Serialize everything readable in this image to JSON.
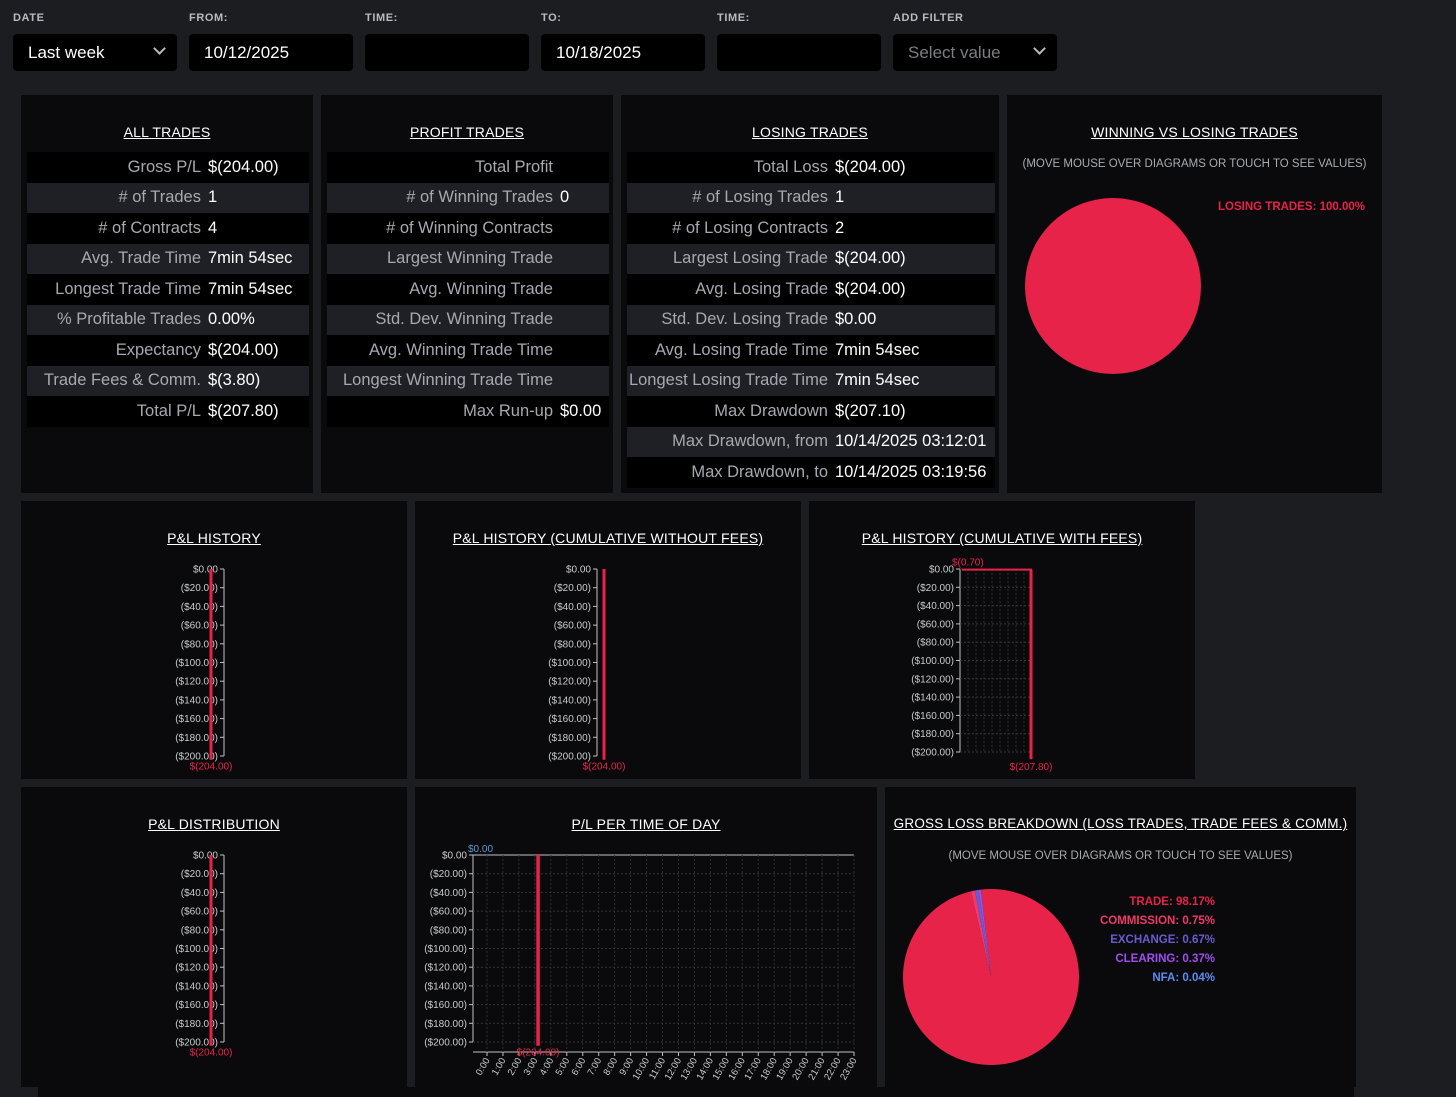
{
  "filters": {
    "date": {
      "label": "DATE",
      "value": "Last week"
    },
    "from": {
      "label": "FROM:",
      "value": "10/12/2025"
    },
    "from_time": {
      "label": "TIME:",
      "value": ""
    },
    "to": {
      "label": "TO:",
      "value": "10/18/2025"
    },
    "to_time": {
      "label": "TIME:",
      "value": ""
    },
    "add_filter": {
      "label": "ADD FILTER",
      "placeholder": "Select value"
    }
  },
  "all_trades": {
    "title": "ALL TRADES",
    "rows": [
      {
        "k": "Gross P/L",
        "v": "$(204.00)"
      },
      {
        "k": "# of Trades",
        "v": "1"
      },
      {
        "k": "# of Contracts",
        "v": "4"
      },
      {
        "k": "Avg. Trade Time",
        "v": "7min 54sec"
      },
      {
        "k": "Longest Trade Time",
        "v": "7min 54sec"
      },
      {
        "k": "% Profitable Trades",
        "v": "0.00%"
      },
      {
        "k": "Expectancy",
        "v": "$(204.00)"
      },
      {
        "k": "Trade Fees & Comm.",
        "v": "$(3.80)"
      },
      {
        "k": "Total P/L",
        "v": "$(207.80)"
      }
    ]
  },
  "profit_trades": {
    "title": "PROFIT TRADES",
    "rows": [
      {
        "k": "Total Profit",
        "v": ""
      },
      {
        "k": "# of Winning Trades",
        "v": "0"
      },
      {
        "k": "# of Winning Contracts",
        "v": ""
      },
      {
        "k": "Largest Winning Trade",
        "v": ""
      },
      {
        "k": "Avg. Winning Trade",
        "v": ""
      },
      {
        "k": "Std. Dev. Winning Trade",
        "v": ""
      },
      {
        "k": "Avg. Winning Trade Time",
        "v": ""
      },
      {
        "k": "Longest Winning Trade Time",
        "v": ""
      },
      {
        "k": "Max Run-up",
        "v": "$0.00"
      }
    ]
  },
  "losing_trades": {
    "title": "LOSING TRADES",
    "rows": [
      {
        "k": "Total Loss",
        "v": "$(204.00)"
      },
      {
        "k": "# of Losing Trades",
        "v": "1"
      },
      {
        "k": "# of Losing Contracts",
        "v": "2"
      },
      {
        "k": "Largest Losing Trade",
        "v": "$(204.00)"
      },
      {
        "k": "Avg. Losing Trade",
        "v": "$(204.00)"
      },
      {
        "k": "Std. Dev. Losing Trade",
        "v": "$0.00"
      },
      {
        "k": "Avg. Losing Trade Time",
        "v": "7min 54sec"
      },
      {
        "k": "Longest Losing Trade Time",
        "v": "7min 54sec"
      },
      {
        "k": "Max Drawdown",
        "v": "$(207.10)"
      },
      {
        "k": "Max Drawdown, from",
        "v": "10/14/2025 03:12:01"
      },
      {
        "k": "Max Drawdown, to",
        "v": "10/14/2025 03:19:56"
      }
    ]
  },
  "win_loss": {
    "title": "WINNING VS LOSING TRADES",
    "hint": "(MOVE MOUSE OVER DIAGRAMS OR TOUCH TO SEE VALUES)",
    "legend": [
      {
        "label": "LOSING TRADES: 100.00%",
        "color": "#e8234a"
      }
    ]
  },
  "gross_loss": {
    "title": "GROSS LOSS BREAKDOWN (LOSS TRADES, TRADE FEES & COMM.)",
    "hint": "(MOVE MOUSE OVER DIAGRAMS OR TOUCH TO SEE VALUES)",
    "legend": [
      {
        "label": "TRADE: 98.17%",
        "color": "#e8234a"
      },
      {
        "label": "COMMISSION: 0.75%",
        "color": "#f0386b"
      },
      {
        "label": "EXCHANGE: 0.67%",
        "color": "#6a5bd0"
      },
      {
        "label": "CLEARING: 0.37%",
        "color": "#a04cf0"
      },
      {
        "label": "NFA: 0.04%",
        "color": "#5b8cf0"
      }
    ]
  },
  "chart_titles": {
    "pl_history": "P&L HISTORY",
    "pl_cum_no_fees": "P&L HISTORY (CUMULATIVE WITHOUT FEES)",
    "pl_cum_fees": "P&L HISTORY (CUMULATIVE WITH FEES)",
    "pl_distribution": "P&L DISTRIBUTION",
    "pl_time_of_day": "P/L PER TIME OF DAY"
  },
  "chart_data": [
    {
      "type": "bar",
      "title": "P&L HISTORY",
      "y_ticks": [
        "$0.00",
        "($20.00)",
        "($40.00)",
        "($60.00)",
        "($80.00)",
        "($100.00)",
        "($120.00)",
        "($140.00)",
        "($160.00)",
        "($180.00)",
        "($200.00)"
      ],
      "ylim": [
        -204,
        0
      ],
      "values": [
        -204
      ],
      "value_labels": [
        "$(204.00)"
      ],
      "color": "#e8234a"
    },
    {
      "type": "bar",
      "title": "P&L HISTORY (CUMULATIVE WITHOUT FEES)",
      "y_ticks": [
        "$0.00",
        "($20.00)",
        "($40.00)",
        "($60.00)",
        "($80.00)",
        "($100.00)",
        "($120.00)",
        "($140.00)",
        "($160.00)",
        "($180.00)",
        "($200.00)"
      ],
      "ylim": [
        -204,
        0
      ],
      "values": [
        -204
      ],
      "value_labels": [
        "$(204.00)"
      ],
      "color": "#e8234a"
    },
    {
      "type": "line",
      "title": "P&L HISTORY (CUMULATIVE WITH FEES)",
      "y_ticks": [
        "$0.00",
        "($20.00)",
        "($40.00)",
        "($60.00)",
        "($80.00)",
        "($100.00)",
        "($120.00)",
        "($140.00)",
        "($160.00)",
        "($180.00)",
        "($200.00)"
      ],
      "ylim": [
        -207.8,
        0
      ],
      "values": [
        -0.7,
        -207.8
      ],
      "value_labels": [
        "$(0.70)",
        "$(207.80)"
      ],
      "grid": true,
      "color": "#e8234a"
    },
    {
      "type": "bar",
      "title": "P&L DISTRIBUTION",
      "y_ticks": [
        "$0.00",
        "($20.00)",
        "($40.00)",
        "($60.00)",
        "($80.00)",
        "($100.00)",
        "($120.00)",
        "($140.00)",
        "($160.00)",
        "($180.00)",
        "($200.00)"
      ],
      "ylim": [
        -204,
        0
      ],
      "values": [
        -204
      ],
      "value_labels": [
        "$(204.00)"
      ],
      "color": "#e8234a"
    },
    {
      "type": "bar",
      "title": "P/L PER TIME OF DAY",
      "y_ticks": [
        "$0.00",
        "($20.00)",
        "($40.00)",
        "($60.00)",
        "($80.00)",
        "($100.00)",
        "($120.00)",
        "($140.00)",
        "($160.00)",
        "($180.00)",
        "($200.00)"
      ],
      "x_ticks": [
        "0:00",
        "1:00",
        "2:00",
        "3:00",
        "4:00",
        "5:00",
        "6:00",
        "7:00",
        "8:00",
        "9:00",
        "10:00",
        "11:00",
        "12:00",
        "13:00",
        "14:00",
        "15:00",
        "16:00",
        "17:00",
        "18:00",
        "19:00",
        "20:00",
        "21:00",
        "22:00",
        "23:00"
      ],
      "ylim": [
        -204,
        0
      ],
      "bars": [
        {
          "hour": "3:00",
          "value": -204,
          "label": "$(204.00)"
        }
      ],
      "top_label": "$0.00",
      "grid": true,
      "color": "#e8234a"
    },
    {
      "type": "pie",
      "title": "WINNING VS LOSING TRADES",
      "slices": [
        {
          "name": "LOSING TRADES",
          "value": 100.0
        }
      ]
    },
    {
      "type": "pie",
      "title": "GROSS LOSS BREAKDOWN (LOSS TRADES, TRADE FEES & COMM.)",
      "slices": [
        {
          "name": "TRADE",
          "value": 98.17
        },
        {
          "name": "COMMISSION",
          "value": 0.75
        },
        {
          "name": "EXCHANGE",
          "value": 0.67
        },
        {
          "name": "CLEARING",
          "value": 0.37
        },
        {
          "name": "NFA",
          "value": 0.04
        }
      ]
    }
  ]
}
